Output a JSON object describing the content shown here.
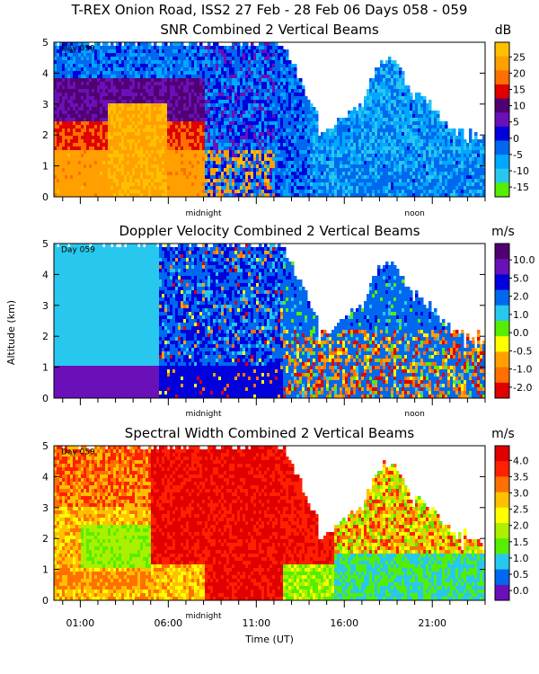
{
  "title": "T-REX Onion Road, ISS2  27 Feb - 28 Feb 06 Days 058 - 059",
  "xlabel": "Time (UT)",
  "ylabel": "Altitude (km)",
  "x_ticks": [
    "01:00",
    "06:00",
    "11:00",
    "16:00",
    "21:00"
  ],
  "x_ticks_hours": [
    1,
    6,
    11,
    16,
    21
  ],
  "x_range_hours": [
    -0.5,
    24
  ],
  "day_marker_label": "Day 059",
  "midnight_label": "midnight",
  "noon_label": "noon",
  "midnight_hour": 8,
  "noon_hour": 20,
  "colors": {
    "palette": [
      "#55ee00",
      "#aaf000",
      "#28c8ee",
      "#00a8ff",
      "#0068ee",
      "#0000dd",
      "#6a10b8",
      "#500070",
      "#e00000",
      "#ff7000",
      "#ffa000",
      "#ffc000",
      "#ffff00"
    ]
  },
  "chart_data": [
    {
      "type": "heatmap",
      "title": "SNR Combined 2 Vertical Beams",
      "unit": "dB",
      "ylim": [
        0,
        5
      ],
      "y_ticks": [
        "0",
        "1",
        "2",
        "3",
        "4",
        "5"
      ],
      "colorbar_labels": [
        "25",
        "20",
        "15",
        "10",
        "5",
        "0",
        "-5",
        "-10",
        "-15"
      ],
      "colorbar_colors": [
        "#ffc000",
        "#ffa000",
        "#ff7000",
        "#e00000",
        "#500070",
        "#6a10b8",
        "#0000dd",
        "#0068ee",
        "#00a8ff",
        "#28c8ee",
        "#55ee00"
      ]
    },
    {
      "type": "heatmap",
      "title": "Doppler Velocity Combined 2 Vertical Beams",
      "unit": "m/s",
      "ylim": [
        0,
        5
      ],
      "y_ticks": [
        "0",
        "1",
        "2",
        "3",
        "4",
        "5"
      ],
      "colorbar_labels": [
        "10.0",
        "5.0",
        "2.0",
        "1.0",
        "0.0",
        "-0.5",
        "-1.0",
        "-2.0"
      ],
      "colorbar_colors": [
        "#500070",
        "#6a10b8",
        "#0000dd",
        "#0068ee",
        "#28c8ee",
        "#55ee00",
        "#ffff00",
        "#ffa000",
        "#ff7000",
        "#e00000"
      ]
    },
    {
      "type": "heatmap",
      "title": "Spectral Width Combined 2 Vertical Beams",
      "unit": "m/s",
      "ylim": [
        0,
        5
      ],
      "y_ticks": [
        "0",
        "1",
        "2",
        "3",
        "4",
        "5"
      ],
      "colorbar_labels": [
        "4.0",
        "3.5",
        "3.0",
        "2.5",
        "2.0",
        "1.5",
        "1.0",
        "0.5",
        "0.0"
      ],
      "colorbar_colors": [
        "#e00000",
        "#ff2000",
        "#ff7000",
        "#ffc000",
        "#ffff00",
        "#aaf000",
        "#55ee00",
        "#28c8ee",
        "#0068ee",
        "#6a10b8"
      ]
    }
  ]
}
